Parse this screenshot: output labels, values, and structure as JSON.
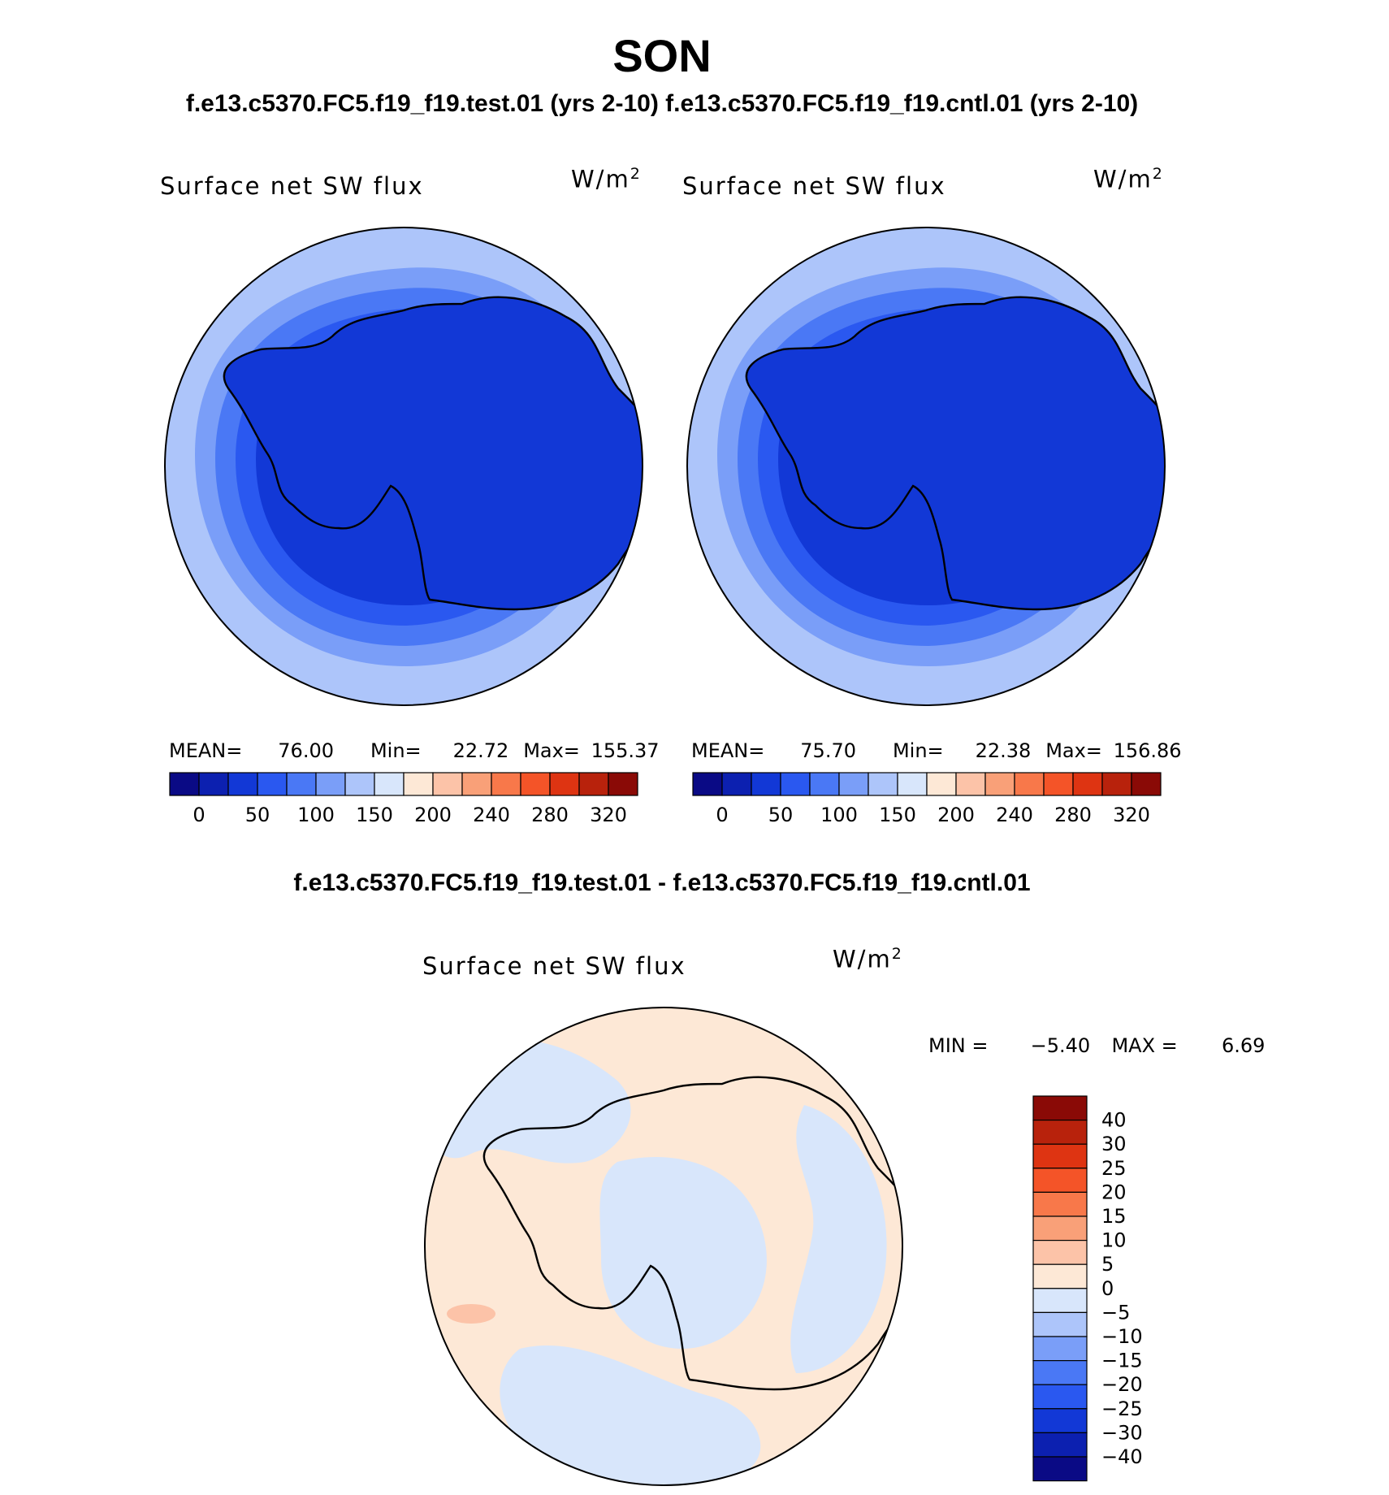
{
  "figure": {
    "season": "SON",
    "subtitle": "f.e13.c5370.FC5.f19_f19.test.01 (yrs 2-10) f.e13.c5370.FC5.f19_f19.cntl.01 (yrs 2-10)",
    "diff_title": "f.e13.c5370.FC5.f19_f19.test.01 - f.e13.c5370.FC5.f19_f19.cntl.01"
  },
  "panels": [
    {
      "label": "Surface net SW flux",
      "units_base": "W/m",
      "units_exp": "2",
      "mean_label": "MEAN=",
      "mean": "76.00",
      "min_label": "Min=",
      "min": "22.72",
      "max_label": "Max=",
      "max": "155.37"
    },
    {
      "label": "Surface net SW flux",
      "units_base": "W/m",
      "units_exp": "2",
      "mean_label": "MEAN=",
      "mean": "75.70",
      "min_label": "Min=",
      "min": "22.38",
      "max_label": "Max=",
      "max": "156.86"
    }
  ],
  "diff_panel": {
    "label": "Surface net SW flux",
    "units_base": "W/m",
    "units_exp": "2",
    "min_label": "MIN =",
    "min": "−5.40",
    "max_label": "MAX =",
    "max": "6.69"
  },
  "colorbar_main": {
    "colors": [
      "#0a0a85",
      "#0c20b0",
      "#1238d6",
      "#2a58f0",
      "#4a78f5",
      "#7a9ef8",
      "#adc5fa",
      "#d8e6fb",
      "#fde8d6",
      "#fcc3a8",
      "#f9a078",
      "#f8784a",
      "#f45428",
      "#de3412",
      "#b8220c",
      "#8a0a06"
    ],
    "labels": [
      "0",
      "50",
      "100",
      "150",
      "200",
      "240",
      "280",
      "320"
    ]
  },
  "colorbar_diff": {
    "colors": [
      "#8a0a06",
      "#b8220c",
      "#de3412",
      "#f45428",
      "#f8784a",
      "#f9a078",
      "#fcc3a8",
      "#fde8d6",
      "#d8e6fb",
      "#adc5fa",
      "#7a9ef8",
      "#4a78f5",
      "#2a58f0",
      "#1238d6",
      "#0c20b0",
      "#0a0a85"
    ],
    "labels": [
      "40",
      "30",
      "25",
      "20",
      "15",
      "10",
      "5",
      "0",
      "−5",
      "−10",
      "−15",
      "−20",
      "−25",
      "−30",
      "−40"
    ]
  },
  "map_colors": {
    "ring_outer": "#adc5fa",
    "ring_mid": "#7a9ef8",
    "ring_inner": "#4a78f5",
    "ring_inner2": "#2a58f0",
    "ice": "#1238d6",
    "coast": "#000000",
    "diff_pos": "#fde8d6",
    "diff_neg": "#d8e6fb",
    "diff_pos2": "#fcc3a8"
  }
}
